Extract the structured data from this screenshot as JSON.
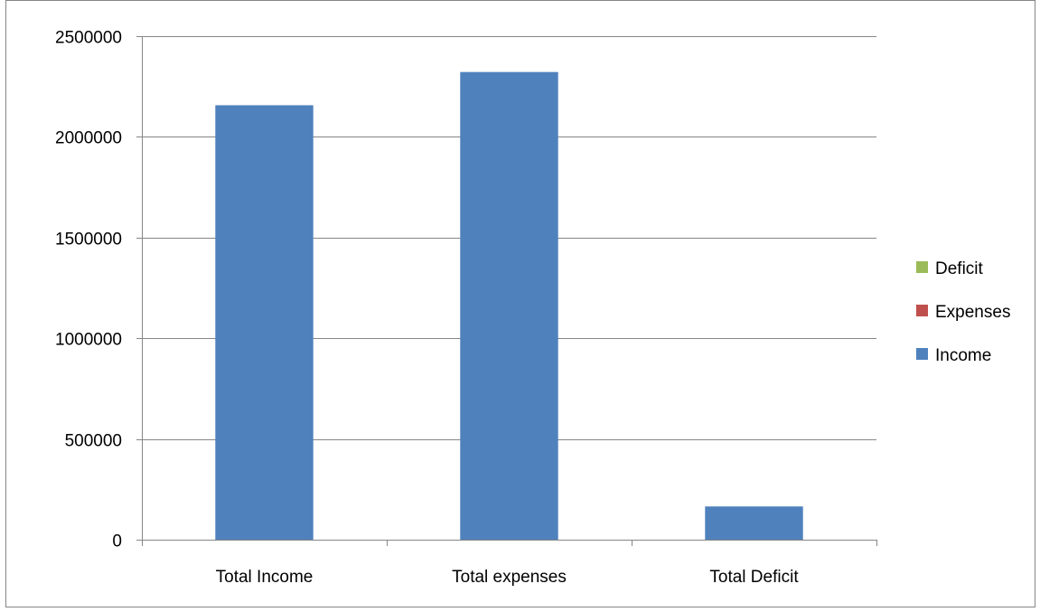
{
  "chart_data": {
    "type": "bar",
    "title": "",
    "xlabel": "",
    "ylabel": "",
    "categories": [
      "Total Income",
      "Total expenses",
      "Total Deficit"
    ],
    "series": [
      {
        "name": "Income",
        "values": [
          2157000,
          2322000,
          165000
        ],
        "color": "#4F81BD"
      },
      {
        "name": "Expenses",
        "values": [
          0,
          0,
          0
        ],
        "color": "#C0504D"
      },
      {
        "name": "Deficit",
        "values": [
          0,
          0,
          0
        ],
        "color": "#9BBB59"
      }
    ],
    "ylim": [
      0,
      2500000
    ],
    "yticks": [
      "0",
      "500000",
      "1000000",
      "1500000",
      "2000000",
      "2500000"
    ],
    "grid": true,
    "legend": {
      "position": "right",
      "entries": [
        "Deficit",
        "Expenses",
        "Income"
      ]
    },
    "stacked": true
  }
}
